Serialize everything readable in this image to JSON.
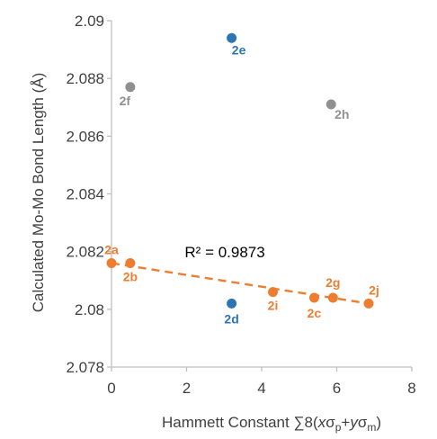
{
  "chart_data": {
    "type": "scatter",
    "ylabel": "Calculated Mo-Mo Bond Length (Å)",
    "xlabel": {
      "prefix": "Hammett Constant ∑8(",
      "x": "x",
      "sigma1": "σ",
      "sub1": "p",
      "plus": "+",
      "y": "y",
      "sigma2": "σ",
      "sub2": "m",
      "suffix": ")"
    },
    "xlim": [
      0,
      8
    ],
    "ylim": [
      2.078,
      2.09
    ],
    "xticks": [
      "0",
      "2",
      "4",
      "6",
      "8"
    ],
    "yticks": [
      "2.078",
      "2.08",
      "2.082",
      "2.084",
      "2.086",
      "2.088",
      "2.09"
    ],
    "grid": false,
    "series": [
      {
        "color": "#ED7D31",
        "points": [
          {
            "label": "2a",
            "x": 0.0,
            "y": 2.0816
          },
          {
            "label": "2b",
            "x": 0.5,
            "y": 2.0816
          },
          {
            "label": "2i",
            "x": 4.3,
            "y": 2.0806
          },
          {
            "label": "2c",
            "x": 5.4,
            "y": 2.0804
          },
          {
            "label": "2g",
            "x": 5.9,
            "y": 2.0804
          },
          {
            "label": "2j",
            "x": 6.85,
            "y": 2.0802
          }
        ],
        "trendline": {
          "x": [
            0,
            6.85
          ],
          "y": [
            2.0816,
            2.0802
          ],
          "style": "dashed"
        }
      },
      {
        "color": "#2E75B6",
        "points": [
          {
            "label": "2e",
            "x": 3.2,
            "y": 2.0894
          },
          {
            "label": "2d",
            "x": 3.2,
            "y": 2.0802
          }
        ]
      },
      {
        "color": "#909090",
        "points": [
          {
            "label": "2f",
            "x": 0.5,
            "y": 2.0877
          },
          {
            "label": "2h",
            "x": 5.85,
            "y": 2.0871
          }
        ]
      }
    ],
    "annotations": [
      {
        "text": "R² = 0.9873",
        "x": 1.95,
        "y": 2.0818
      }
    ]
  }
}
